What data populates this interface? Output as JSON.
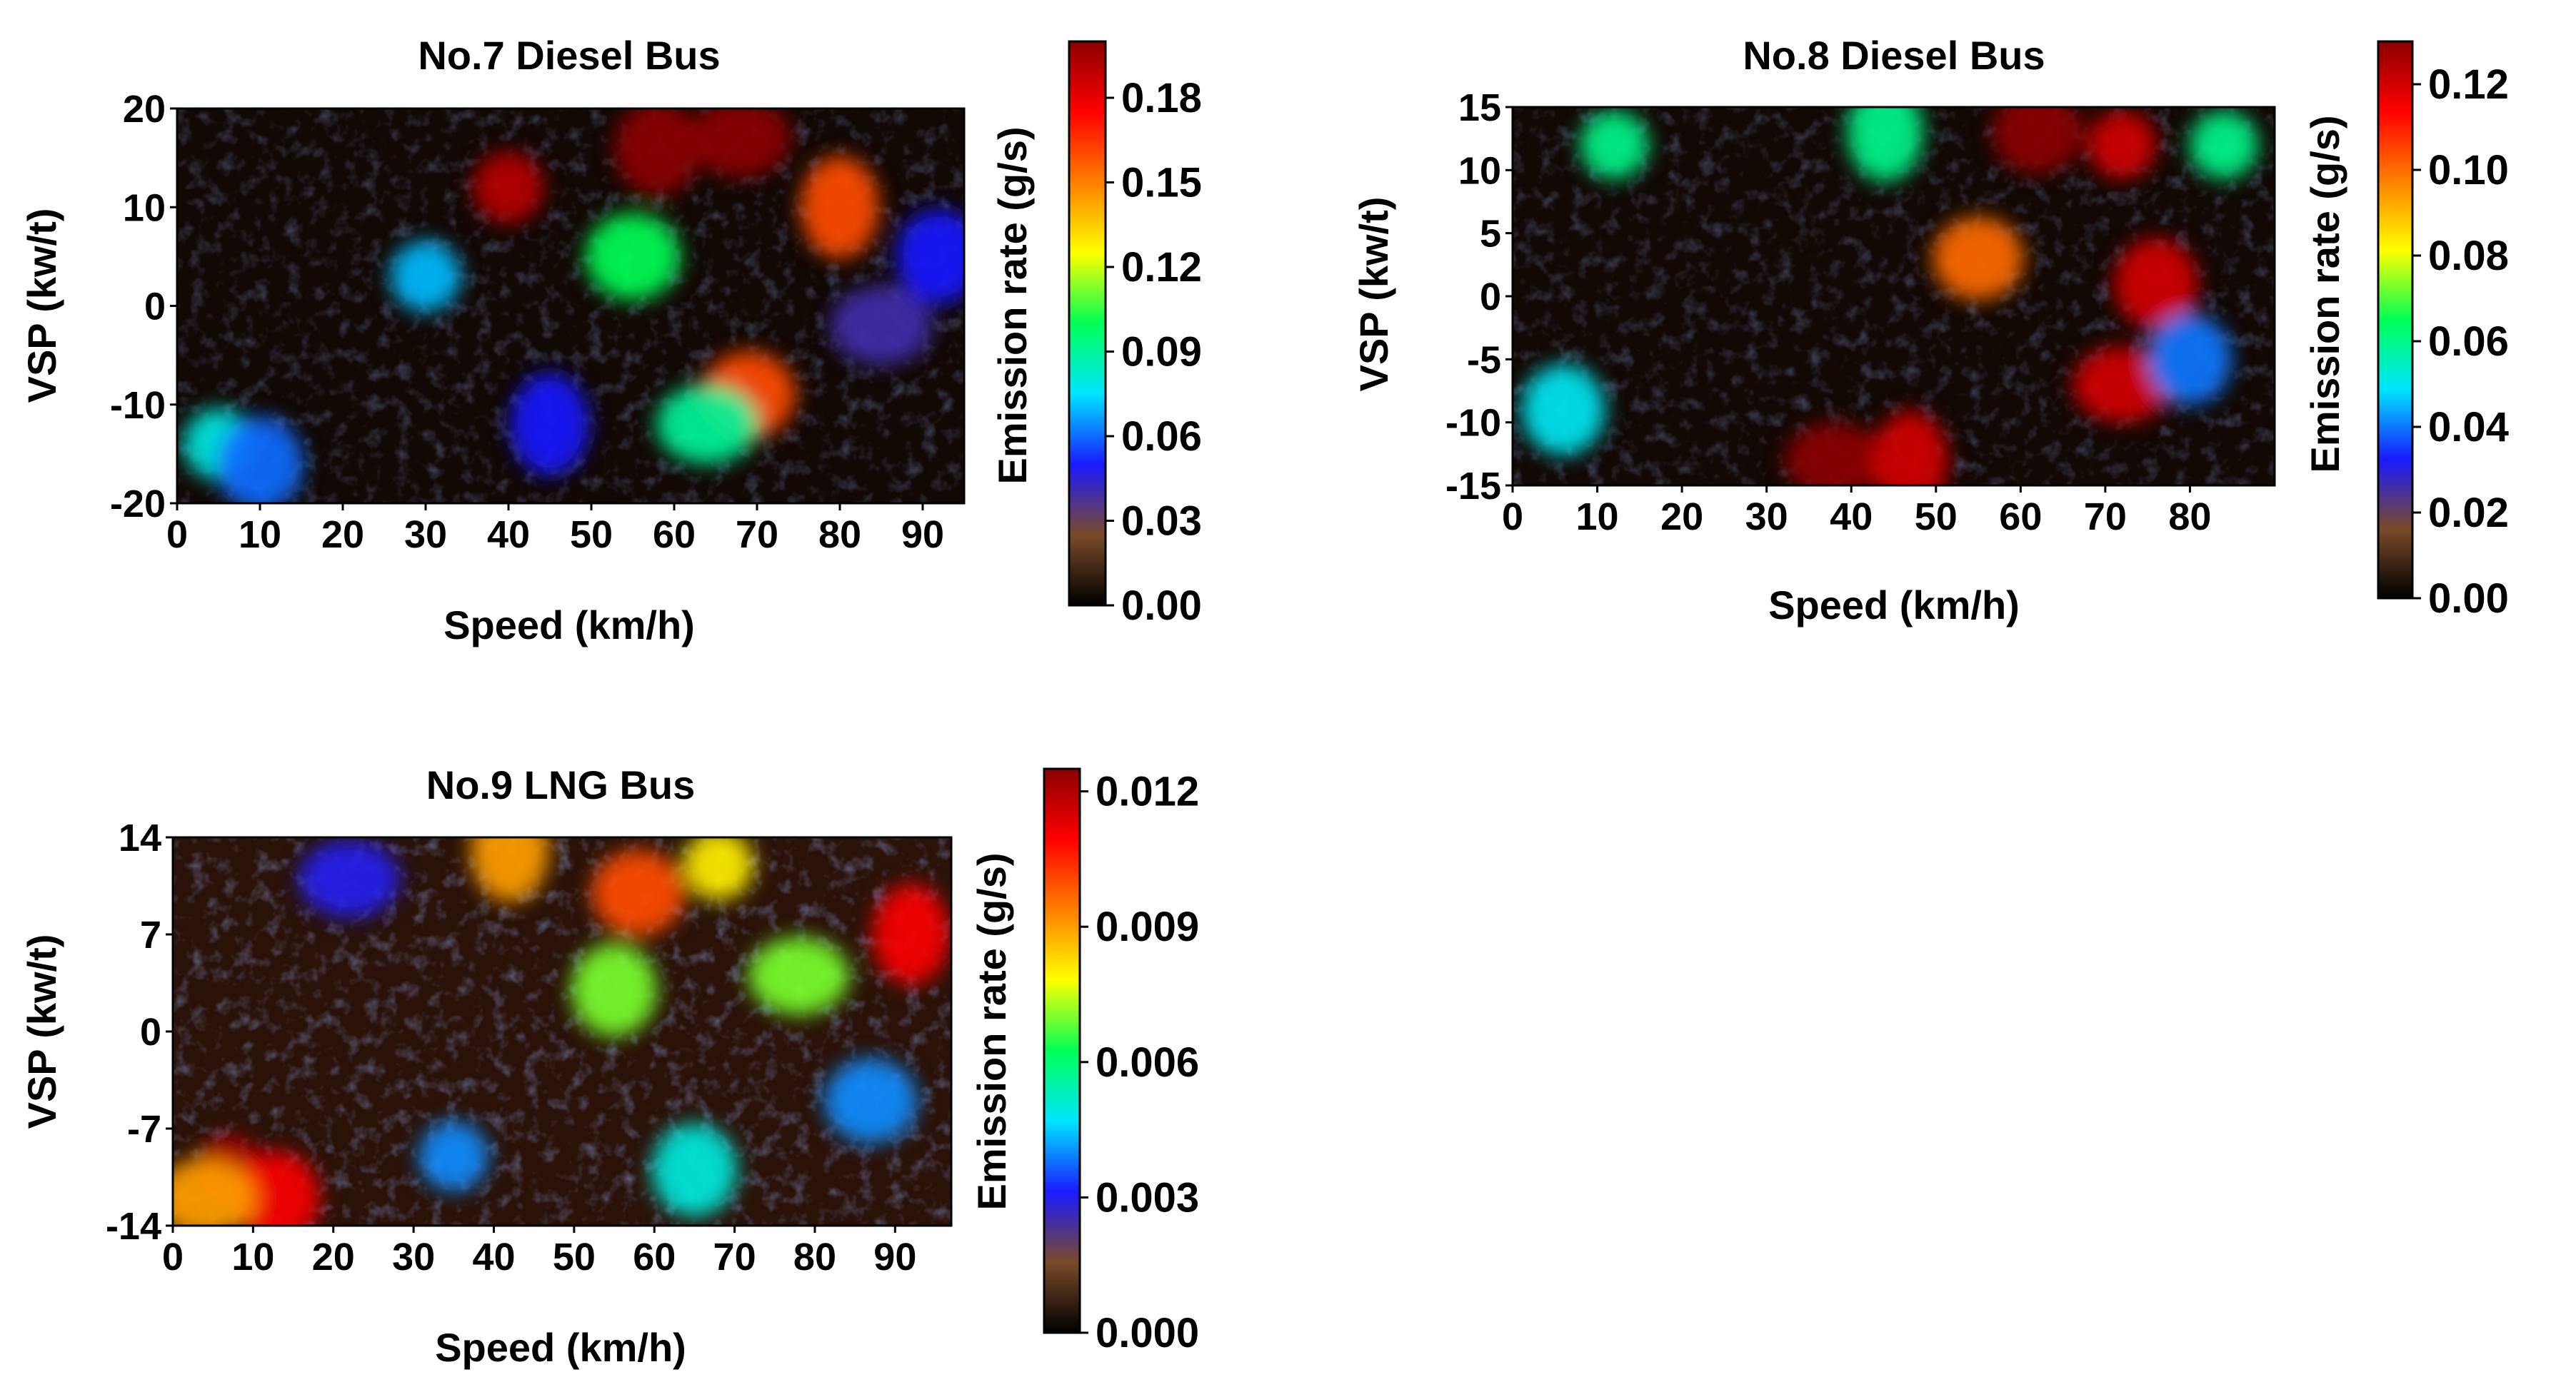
{
  "chart_data": [
    {
      "type": "heatmap",
      "title": "No.7 Diesel Bus",
      "xlabel": "Speed (km/h)",
      "ylabel": "VSP (kw/t)",
      "xlim": [
        0,
        95
      ],
      "ylim": [
        -20,
        20
      ],
      "x_ticks": [
        "0",
        "10",
        "20",
        "30",
        "40",
        "50",
        "60",
        "70",
        "80",
        "90"
      ],
      "x_tick_values": [
        0,
        10,
        20,
        30,
        40,
        50,
        60,
        70,
        80,
        90
      ],
      "y_ticks": [
        "20",
        "10",
        "0",
        "-10",
        "-20"
      ],
      "y_tick_values": [
        20,
        10,
        0,
        -10,
        -20
      ],
      "colorbar": {
        "label": "Emission rate (g/s)",
        "range": [
          0,
          0.2
        ],
        "ticks": [
          "0.18",
          "0.15",
          "0.12",
          "0.09",
          "0.06",
          "0.03",
          "0.00"
        ],
        "tick_values": [
          0.18,
          0.15,
          0.12,
          0.09,
          0.06,
          0.03,
          0.0
        ]
      },
      "colormap": [
        "#000000",
        "#7a4a2a",
        "#1a1aff",
        "#00e5ff",
        "#00ff55",
        "#ffff00",
        "#ff7f00",
        "#ff0000",
        "#8b0000"
      ],
      "hotspots": [
        {
          "x": 40,
          "y": 12,
          "level": 0.19
        },
        {
          "x": 58,
          "y": 16,
          "level": 0.2
        },
        {
          "x": 68,
          "y": 17,
          "level": 0.2
        },
        {
          "x": 80,
          "y": 10,
          "level": 0.16
        },
        {
          "x": 69,
          "y": -9,
          "level": 0.16
        },
        {
          "x": 5,
          "y": -14,
          "level": 0.08
        },
        {
          "x": 10,
          "y": -16,
          "level": 0.06
        },
        {
          "x": 64,
          "y": -12,
          "level": 0.09
        },
        {
          "x": 45,
          "y": -12,
          "level": 0.05
        },
        {
          "x": 55,
          "y": 5,
          "level": 0.1
        },
        {
          "x": 30,
          "y": 3,
          "level": 0.07
        },
        {
          "x": 92,
          "y": 5,
          "level": 0.05
        },
        {
          "x": 85,
          "y": -2,
          "level": 0.04
        }
      ]
    },
    {
      "type": "heatmap",
      "title": "No.8 Diesel Bus",
      "xlabel": "Speed (km/h)",
      "ylabel": "VSP (kw/t)",
      "xlim": [
        0,
        90
      ],
      "ylim": [
        -15,
        15
      ],
      "x_ticks": [
        "0",
        "10",
        "20",
        "30",
        "40",
        "50",
        "60",
        "70",
        "80"
      ],
      "x_tick_values": [
        0,
        10,
        20,
        30,
        40,
        50,
        60,
        70,
        80
      ],
      "y_ticks": [
        "15",
        "10",
        "5",
        "0",
        "-5",
        "-10",
        "-15"
      ],
      "y_tick_values": [
        15,
        10,
        5,
        0,
        -5,
        -10,
        -15
      ],
      "colorbar": {
        "label": "Emission rate (g/s)",
        "range": [
          0,
          0.13
        ],
        "ticks": [
          "0.12",
          "0.10",
          "0.08",
          "0.06",
          "0.04",
          "0.02",
          "0.00"
        ],
        "tick_values": [
          0.12,
          0.1,
          0.08,
          0.06,
          0.04,
          0.02,
          0.0
        ]
      },
      "colormap": [
        "#000000",
        "#7a4a2a",
        "#1a1aff",
        "#00e5ff",
        "#00ff55",
        "#ffff00",
        "#ff7f00",
        "#ff0000",
        "#8b0000"
      ],
      "hotspots": [
        {
          "x": 12,
          "y": 12,
          "level": 0.06
        },
        {
          "x": 6,
          "y": -9,
          "level": 0.05
        },
        {
          "x": 38,
          "y": -13,
          "level": 0.13
        },
        {
          "x": 47,
          "y": -13,
          "level": 0.12
        },
        {
          "x": 62,
          "y": 13,
          "level": 0.13
        },
        {
          "x": 72,
          "y": 12,
          "level": 0.12
        },
        {
          "x": 76,
          "y": 1,
          "level": 0.12
        },
        {
          "x": 72,
          "y": -7,
          "level": 0.12
        },
        {
          "x": 44,
          "y": 13,
          "level": 0.06
        },
        {
          "x": 55,
          "y": 3,
          "level": 0.1
        },
        {
          "x": 84,
          "y": 12,
          "level": 0.06
        },
        {
          "x": 80,
          "y": -5,
          "level": 0.04
        }
      ]
    },
    {
      "type": "heatmap",
      "title": "No.9 LNG Bus",
      "xlabel": "Speed (km/h)",
      "ylabel": "VSP (kw/t)",
      "xlim": [
        0,
        97
      ],
      "ylim": [
        -14,
        14
      ],
      "x_ticks": [
        "0",
        "10",
        "20",
        "30",
        "40",
        "50",
        "60",
        "70",
        "80",
        "90"
      ],
      "x_tick_values": [
        0,
        10,
        20,
        30,
        40,
        50,
        60,
        70,
        80,
        90
      ],
      "y_ticks": [
        "14",
        "7",
        "0",
        "-7",
        "-14"
      ],
      "y_tick_values": [
        14,
        7,
        0,
        -7,
        -14
      ],
      "colorbar": {
        "label": "Emission rate (g/s)",
        "range": [
          0,
          0.0125
        ],
        "ticks": [
          "0.012",
          "0.009",
          "0.006",
          "0.003",
          "0.000"
        ],
        "tick_values": [
          0.012,
          0.009,
          0.006,
          0.003,
          0.0
        ]
      },
      "colormap": [
        "#000000",
        "#7a4a2a",
        "#1a1aff",
        "#00e5ff",
        "#00ff55",
        "#ffff00",
        "#ff7f00",
        "#ff0000",
        "#8b0000"
      ],
      "hotspots": [
        {
          "x": 7,
          "y": -10,
          "level": 0.012
        },
        {
          "x": 13,
          "y": -12,
          "level": 0.011
        },
        {
          "x": 4,
          "y": -12,
          "level": 0.009
        },
        {
          "x": 42,
          "y": 13,
          "level": 0.009
        },
        {
          "x": 58,
          "y": 10,
          "level": 0.01
        },
        {
          "x": 68,
          "y": 12,
          "level": 0.008
        },
        {
          "x": 55,
          "y": 3,
          "level": 0.007
        },
        {
          "x": 78,
          "y": 4,
          "level": 0.007
        },
        {
          "x": 92,
          "y": 7,
          "level": 0.011
        },
        {
          "x": 87,
          "y": -5,
          "level": 0.004
        },
        {
          "x": 35,
          "y": -9,
          "level": 0.004
        },
        {
          "x": 65,
          "y": -10,
          "level": 0.005
        },
        {
          "x": 22,
          "y": 11,
          "level": 0.003
        }
      ]
    }
  ]
}
